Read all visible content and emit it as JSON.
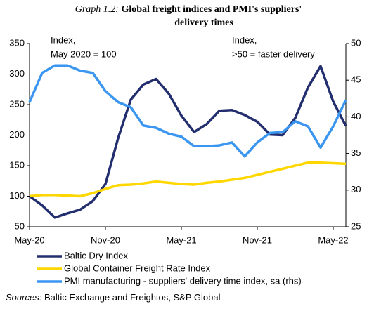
{
  "chart_data": {
    "type": "line",
    "title_label": "Graph 1.2:",
    "title": [
      "Global freight indices and PMI's suppliers'",
      "delivery times"
    ],
    "annotations": [
      [
        "Index,",
        "May 2020 = 100"
      ],
      [
        "Index,",
        ">50 = faster delivery"
      ]
    ],
    "categories": [
      "May-20",
      null,
      null,
      null,
      null,
      null,
      "Nov-20",
      null,
      null,
      null,
      null,
      null,
      "May-21",
      null,
      null,
      null,
      null,
      null,
      "Nov-21",
      null,
      null,
      null,
      null,
      null,
      "May-22",
      null
    ],
    "series": [
      {
        "name": "Baltic Dry Index",
        "color": "#232e6e",
        "values": [
          100,
          85,
          65,
          72,
          78,
          92,
          120,
          195,
          258,
          283,
          292,
          268,
          232,
          205,
          218,
          240,
          241,
          233,
          222,
          201,
          200,
          228,
          278,
          313,
          255,
          215
        ]
      },
      {
        "name": "Global Container Freight Rate Index",
        "color": "#ffd700",
        "values": [
          100,
          102,
          102,
          101,
          100,
          105,
          112,
          118,
          119,
          121,
          124,
          122,
          120,
          119,
          122,
          124,
          127,
          130,
          135,
          140,
          145,
          150,
          155,
          155,
          154,
          153
        ]
      },
      {
        "name": "PMI manufacturing - suppliers' delivery time index, sa (rhs)",
        "color": "#3a96f0",
        "axis": "y2",
        "values": [
          42,
          46,
          47,
          47,
          46.3,
          46,
          43.5,
          42,
          41.3,
          38.8,
          38.5,
          37.7,
          37.3,
          36,
          36,
          36.1,
          36.5,
          34.6,
          36.5,
          37.8,
          37.9,
          39.4,
          38.7,
          35.8,
          38.7,
          42.3
        ]
      }
    ],
    "ylim": [
      50,
      350
    ],
    "yticks": [
      50,
      100,
      150,
      200,
      250,
      300,
      350
    ],
    "y2lim": [
      25,
      50
    ],
    "y2ticks": [
      25,
      30,
      35,
      40,
      45,
      50
    ],
    "source_label": "Sources:",
    "source": "Baltic Exchange and Freightos,  S&P Global"
  }
}
